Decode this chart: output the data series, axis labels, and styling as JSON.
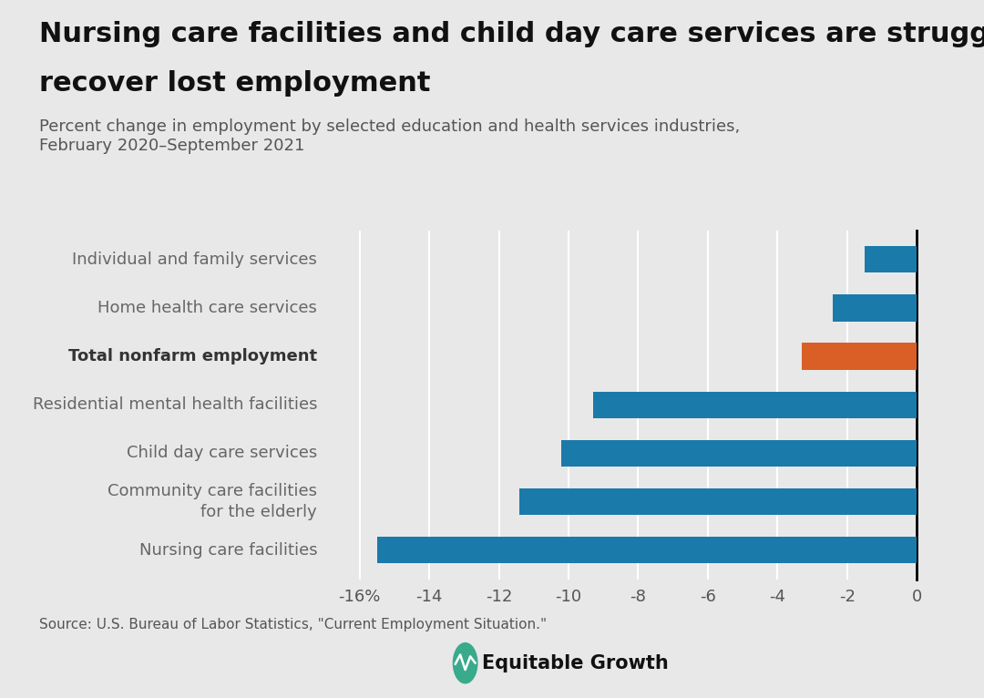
{
  "title_line1": "Nursing care facilities and child day care services are struggling to",
  "title_line2": "recover lost employment",
  "subtitle": "Percent change in employment by selected education and health services industries,\nFebruary 2020–September 2021",
  "categories": [
    "Nursing care facilities",
    "Community care facilities\nfor the elderly",
    "Child day care services",
    "Residential mental health facilities",
    "Total nonfarm employment",
    "Home health care services",
    "Individual and family services"
  ],
  "values": [
    -15.5,
    -11.4,
    -10.2,
    -9.3,
    -3.3,
    -2.4,
    -1.5
  ],
  "colors": [
    "#1a7aaa",
    "#1a7aaa",
    "#1a7aaa",
    "#1a7aaa",
    "#d95f26",
    "#1a7aaa",
    "#1a7aaa"
  ],
  "bold_labels": [
    false,
    false,
    false,
    false,
    true,
    false,
    false
  ],
  "xlim": [
    -17.0,
    0.8
  ],
  "xticks": [
    -16,
    -14,
    -12,
    -10,
    -8,
    -6,
    -4,
    -2,
    0
  ],
  "xtick_labels": [
    "-16%",
    "-14",
    "-12",
    "-10",
    "-8",
    "-6",
    "-4",
    "-2",
    "0"
  ],
  "background_color": "#e8e8e8",
  "bar_height": 0.55,
  "title_fontsize": 22,
  "subtitle_fontsize": 13,
  "tick_fontsize": 13,
  "label_fontsize": 13,
  "source_text": "Source: U.S. Bureau of Labor Statistics, \"Current Employment Situation.\"",
  "source_fontsize": 11,
  "logo_text": "Equitable Growth",
  "logo_color": "#3aaa8c"
}
